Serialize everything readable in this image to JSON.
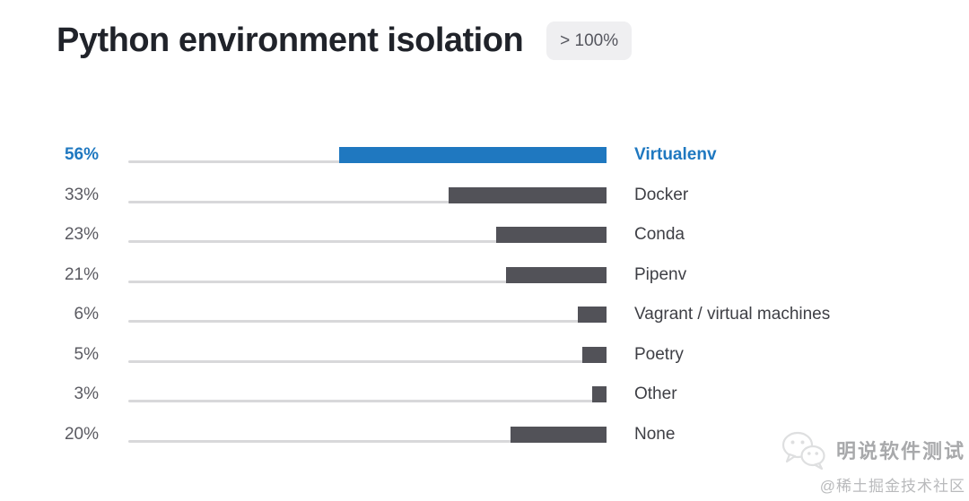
{
  "title": "Python environment isolation",
  "badge": "> 100%",
  "chart_data": {
    "type": "bar",
    "orientation": "horizontal",
    "bar_alignment": "right",
    "title": "Python environment isolation",
    "note": "> 100%",
    "xlim": [
      0,
      100
    ],
    "categories": [
      "Virtualenv",
      "Docker",
      "Conda",
      "Pipenv",
      "Vagrant / virtual machines",
      "Poetry",
      "Other",
      "None"
    ],
    "values": [
      56,
      33,
      23,
      21,
      6,
      5,
      3,
      20
    ],
    "value_labels": [
      "56%",
      "33%",
      "23%",
      "21%",
      "6%",
      "5%",
      "3%",
      "20%"
    ],
    "highlight_index": 0,
    "colors": {
      "highlight": "#1f78c0",
      "bar": "#525258",
      "track": "#d8d8da",
      "value_text": "#5a5a61",
      "category_text": "#3e3f45"
    }
  },
  "watermark": {
    "logo": "wechat-icon",
    "name": "明说软件测试",
    "community": "@稀土掘金技术社区"
  }
}
